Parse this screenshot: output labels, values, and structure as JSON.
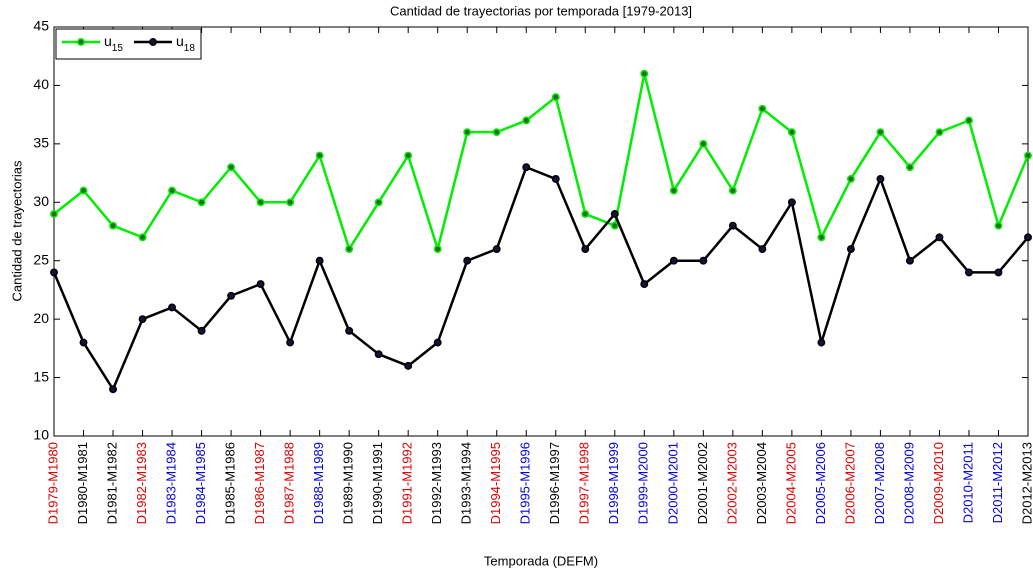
{
  "chart_data": {
    "type": "line",
    "title": "Cantidad de trayectorias por temporada [1979-2013]",
    "x_label": "Temporada (DEFM)",
    "y_label": "Cantidad de trayectorias",
    "categories": [
      "D1979-M1980",
      "D1980-M1981",
      "D1981-M1982",
      "D1982-M1983",
      "D1983-M1984",
      "D1984-M1985",
      "D1985-M1986",
      "D1986-M1987",
      "D1987-M1988",
      "D1988-M1989",
      "D1989-M1990",
      "D1990-M1991",
      "D1991-M1992",
      "D1992-M1993",
      "D1993-M1994",
      "D1994-M1995",
      "D1995-M1996",
      "D1996-M1997",
      "D1997-M1998",
      "D1998-M1999",
      "D1999-M2000",
      "D2000-M2001",
      "D2001-M2002",
      "D2002-M2003",
      "D2003-M2004",
      "D2004-M2005",
      "D2005-M2006",
      "D2006-M2007",
      "D2007-M2008",
      "D2008-M2009",
      "D2009-M2010",
      "D2010-M2011",
      "D2011-M2012",
      "D2012-M2013"
    ],
    "category_colors": [
      "#e00000",
      "#000000",
      "#000000",
      "#e00000",
      "#0000e0",
      "#0000e0",
      "#000000",
      "#e00000",
      "#e00000",
      "#0000e0",
      "#000000",
      "#000000",
      "#e00000",
      "#000000",
      "#000000",
      "#e00000",
      "#0000e0",
      "#000000",
      "#e00000",
      "#0000e0",
      "#0000e0",
      "#0000e0",
      "#000000",
      "#e00000",
      "#000000",
      "#e00000",
      "#0000e0",
      "#e00000",
      "#0000e0",
      "#0000e0",
      "#e00000",
      "#0000e0",
      "#0000e0",
      "#000000"
    ],
    "series": [
      {
        "name": "u15",
        "color": "#00ee00",
        "values": [
          29,
          31,
          28,
          27,
          31,
          30,
          33,
          30,
          30,
          34,
          26,
          30,
          34,
          26,
          36,
          36,
          37,
          39,
          29,
          28,
          41,
          31,
          35,
          31,
          38,
          36,
          27,
          32,
          36,
          33,
          36,
          37,
          28,
          34
        ]
      },
      {
        "name": "u18",
        "color": "#000000",
        "values": [
          24,
          18,
          14,
          20,
          21,
          19,
          22,
          23,
          18,
          25,
          19,
          17,
          16,
          18,
          25,
          26,
          33,
          32,
          26,
          29,
          23,
          25,
          25,
          28,
          26,
          30,
          18,
          26,
          32,
          25,
          27,
          24,
          24,
          27
        ]
      }
    ],
    "ylim": [
      10,
      45
    ],
    "yticks": [
      10,
      15,
      20,
      25,
      30,
      35,
      40,
      45
    ],
    "grid": false,
    "legend": "upper left"
  }
}
